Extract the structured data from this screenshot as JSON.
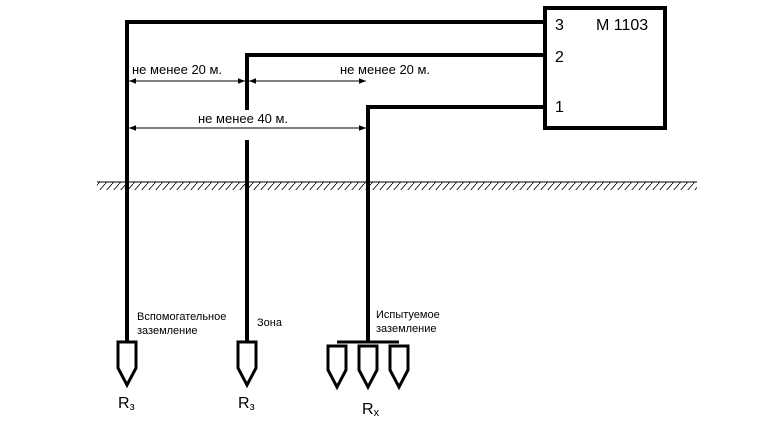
{
  "device": {
    "label": "М 1103",
    "terminals": [
      "3",
      "2",
      "1"
    ]
  },
  "distances": [
    "не менее 20 м.",
    "не менее 20 м.",
    "не менее 40 м."
  ],
  "electrodes": [
    {
      "caption": [
        "Вспомогательное",
        "заземление"
      ],
      "symbol": "R",
      "subscript": "з"
    },
    {
      "caption": [
        "Зона"
      ],
      "symbol": "R",
      "subscript": "з"
    },
    {
      "caption": [
        "Испытуемое",
        "заземление"
      ],
      "symbol": "R",
      "subscript": "x"
    }
  ]
}
